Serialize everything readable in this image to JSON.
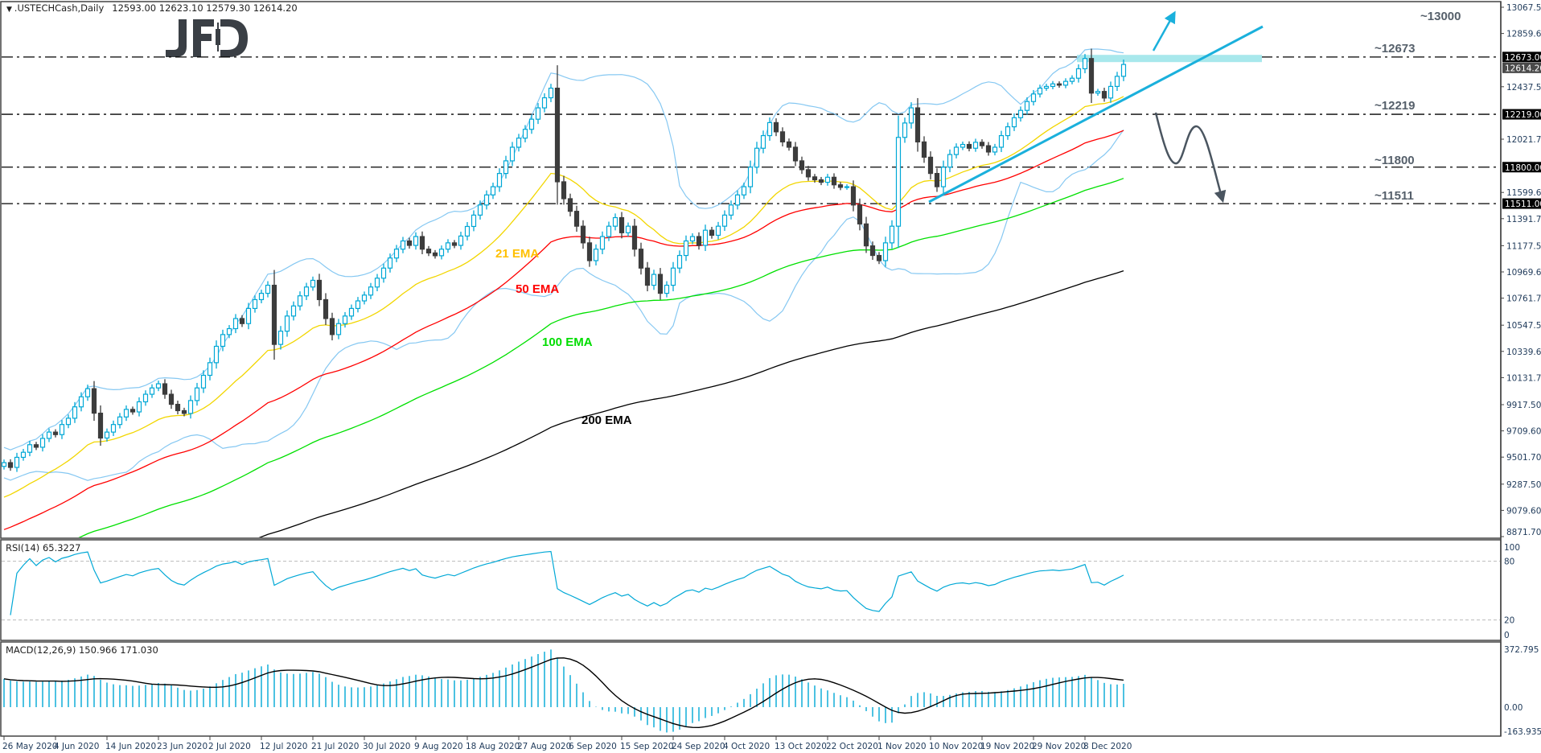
{
  "header": {
    "symbol": ".USTECHCash,Daily",
    "ohlc": "12593.00 12623.10 12579.30 12614.20"
  },
  "logo": {
    "text": "JFD"
  },
  "chart_data": [
    {
      "type": "candlestick",
      "panel": "price",
      "ylim": [
        8871.7,
        13067.5
      ],
      "ytick_labels": [
        "13067.50",
        "12859.60",
        "12437.50",
        "12021.70",
        "11599.60",
        "11391.70",
        "11177.50",
        "10969.60",
        "10761.70",
        "10547.50",
        "10339.60",
        "10131.70",
        "9917.50",
        "9709.60",
        "9501.70",
        "9287.50",
        "9079.60",
        "8871.70"
      ],
      "xtick_labels": [
        "26 May 2020",
        "4 Jun 2020",
        "14 Jun 2020",
        "23 Jun 2020",
        "2 Jul 2020",
        "12 Jul 2020",
        "21 Jul 2020",
        "30 Jul 2020",
        "9 Aug 2020",
        "18 Aug 2020",
        "27 Aug 2020",
        "6 Sep 2020",
        "15 Sep 2020",
        "24 Sep 2020",
        "4 Oct 2020",
        "13 Oct 2020",
        "22 Oct 2020",
        "1 Nov 2020",
        "10 Nov 2020",
        "19 Nov 2020",
        "29 Nov 2020",
        "8 Dec 2020"
      ],
      "close": [
        9458,
        9420,
        9500,
        9540,
        9600,
        9580,
        9650,
        9700,
        9680,
        9760,
        9810,
        9900,
        9980,
        10044,
        9850,
        9653,
        9700,
        9760,
        9820,
        9880,
        9860,
        9940,
        10000,
        10050,
        10083,
        10000,
        9920,
        9870,
        9848,
        9950,
        10050,
        10150,
        10250,
        10380,
        10473,
        10520,
        10600,
        10560,
        10680,
        10750,
        10800,
        10864,
        10395,
        10500,
        10620,
        10700,
        10780,
        10850,
        10903,
        10750,
        10600,
        10473,
        10560,
        10620,
        10680,
        10740,
        10786,
        10850,
        10920,
        11000,
        11080,
        11150,
        11215,
        11180,
        11250,
        11150,
        11120,
        11098,
        11150,
        11200,
        11180,
        11254,
        11330,
        11420,
        11500,
        11580,
        11645,
        11750,
        11850,
        11958,
        12030,
        12100,
        12180,
        12270,
        12350,
        12426,
        11684,
        11550,
        11450,
        11332,
        11200,
        11059,
        11150,
        11250,
        11332,
        11400,
        11280,
        11332,
        11150,
        11000,
        10864,
        10950,
        10800,
        10864,
        11000,
        11100,
        11215,
        11250,
        11180,
        11300,
        11260,
        11332,
        11420,
        11500,
        11580,
        11645,
        11800,
        11950,
        12050,
        12153,
        12080,
        12000,
        11958,
        11850,
        11780,
        11723,
        11700,
        11680,
        11720,
        11660,
        11640,
        11645,
        11500,
        11350,
        11176,
        11100,
        11059,
        11200,
        11332,
        12036,
        12150,
        12270,
        12000,
        11879,
        11750,
        11645,
        11800,
        11900,
        11958,
        11980,
        11950,
        11997,
        11970,
        11920,
        11958,
        12050,
        12120,
        12192,
        12250,
        12320,
        12380,
        12426,
        12440,
        12460,
        12450,
        12480,
        12505,
        12580,
        12661,
        12387,
        12400,
        12348,
        12440,
        12520,
        12614
      ],
      "last_price": "12614.20",
      "indicators": [
        {
          "name": "21 EMA",
          "period": 21,
          "start": 9184,
          "color": "#f2d600",
          "label_color": "#ffc000"
        },
        {
          "name": "50 EMA",
          "period": 50,
          "start": 8927,
          "color": "#ff0000",
          "label_color": "#ff0000"
        },
        {
          "name": "100 EMA",
          "period": 100,
          "start": 8650,
          "color": "#00e000",
          "label_color": "#00dd00"
        },
        {
          "name": "200 EMA",
          "period": 200,
          "start": 8300,
          "color": "#000000",
          "label_color": "#000000"
        }
      ],
      "bollinger": {
        "period": 20,
        "deviation": 2,
        "color": "#86c8f2"
      },
      "levels": [
        {
          "price": 12673,
          "tag": "12673.00",
          "label": "~12673",
          "label_color": "#1ab0dc",
          "style": "dashdot"
        },
        {
          "price": 12219,
          "tag": "12219.00",
          "label": "~12219",
          "label_color": "#56606b",
          "style": "dashdot"
        },
        {
          "price": 11800,
          "tag": "11800.00",
          "label": "~11800",
          "label_color": "#56606b",
          "style": "dashdot"
        },
        {
          "price": 11511,
          "tag": "11511.00",
          "label": "~11511",
          "label_color": "#56606b",
          "style": "dashdot"
        }
      ],
      "target_label": "~13000",
      "colors": {
        "bull": "#00a8d6",
        "bear": "#3c3c3c",
        "trendline": "#1ab0dc",
        "zone": "#a8e8ec",
        "path_arrow": "#4a5560"
      }
    },
    {
      "type": "line",
      "panel": "rsi",
      "title": "RSI(14) 65.3227",
      "period": 14,
      "ylim": [
        0,
        100
      ],
      "ytick_labels": [
        "100",
        "80",
        "20",
        "0"
      ],
      "levels": [
        80,
        20
      ],
      "color": "#00a8d6"
    },
    {
      "type": "bar",
      "panel": "macd",
      "title": "MACD(12,26,9) 150.966 171.030",
      "params": [
        12,
        26,
        9
      ],
      "ylim": [
        -163.935,
        372.795
      ],
      "ytick_labels": [
        "372.795",
        "0.00",
        "-163.935"
      ],
      "histogram_color": "#00a8d6",
      "signal_color": "#000000"
    }
  ]
}
